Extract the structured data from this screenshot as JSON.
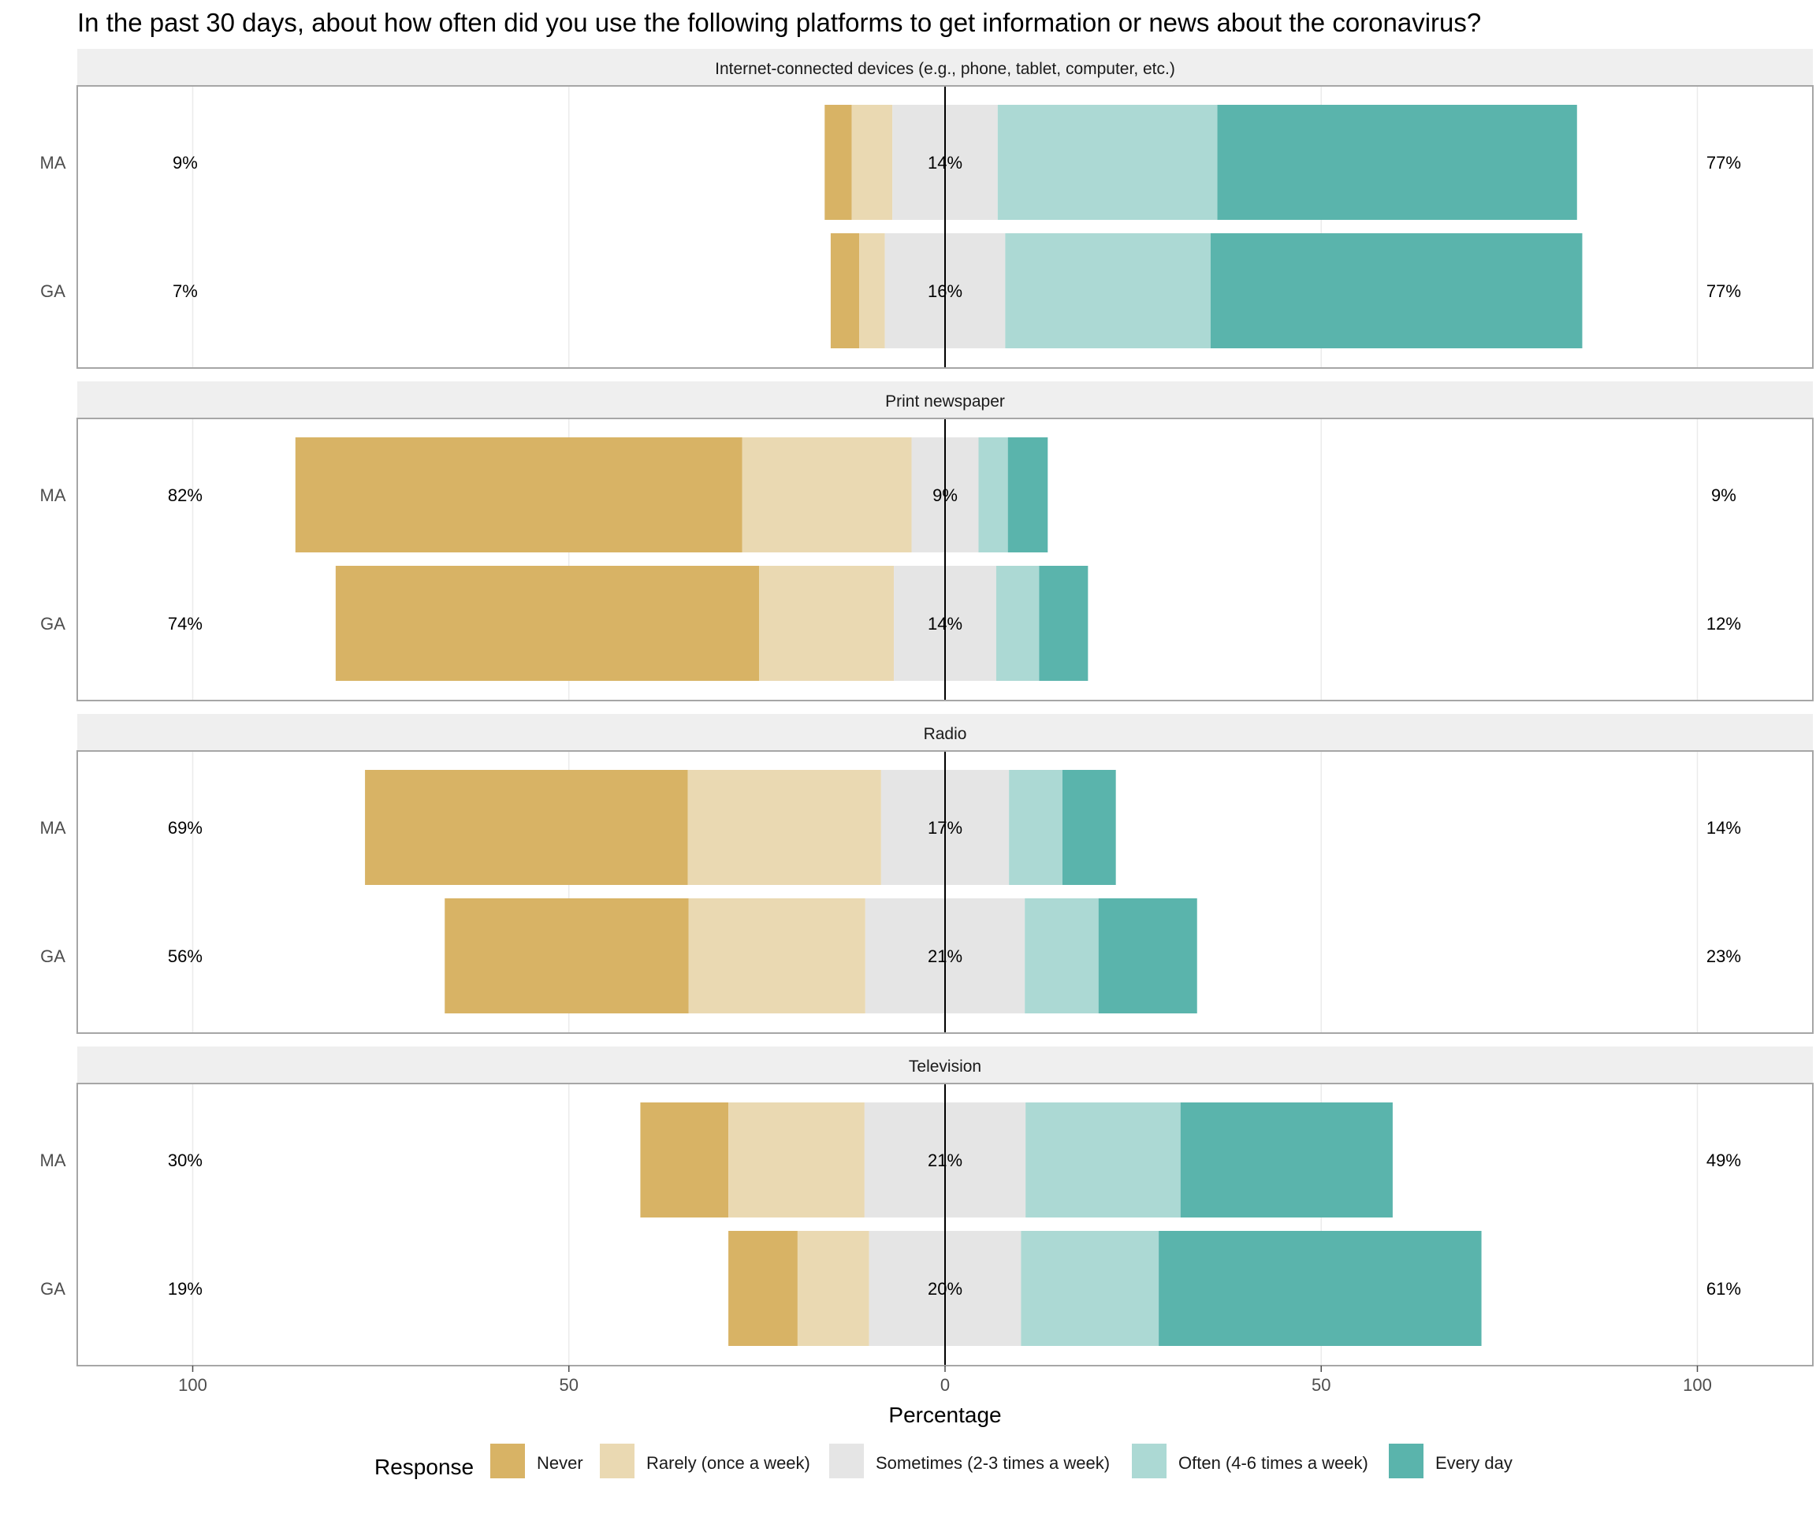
{
  "chart_data": {
    "type": "bar",
    "subtype": "diverging-stacked-likert",
    "title": "In the past 30 days, about how often did you use the following platforms to get information or news about the coronavirus?",
    "xlabel": "Percentage",
    "ylabel": "",
    "xlim": [
      -115,
      115
    ],
    "x_ticks": [
      -100,
      -50,
      0,
      50,
      100
    ],
    "x_tick_labels": [
      "100",
      "50",
      "0",
      "50",
      "100"
    ],
    "legend": {
      "title": "Response",
      "position": "bottom",
      "labels": [
        "Never",
        "Rarely (once a week)",
        "Sometimes (2-3 times a week)",
        "Often (4-6 times a week)",
        "Every day"
      ]
    },
    "colors": [
      "#d8b365",
      "#ead9b2",
      "#e5e5e5",
      "#acd9d4",
      "#5ab4ac"
    ],
    "panels": [
      {
        "title": "Internet-connected devices (e.g., phone, tablet, computer, etc.)",
        "rows": [
          {
            "label": "MA",
            "values": [
              3.6,
              5.4,
              14,
              29.2,
              47.8
            ],
            "low_label": "9%",
            "mid_label": "14%",
            "high_label": "77%"
          },
          {
            "label": "GA",
            "values": [
              3.8,
              3.4,
              16,
              27.3,
              49.4
            ],
            "low_label": "7%",
            "mid_label": "16%",
            "high_label": "77%"
          }
        ]
      },
      {
        "title": "Print newspaper",
        "rows": [
          {
            "label": "MA",
            "values": [
              59.4,
              22.5,
              8.9,
              3.9,
              5.3
            ],
            "low_label": "82%",
            "mid_label": "9%",
            "high_label": "9%"
          },
          {
            "label": "GA",
            "values": [
              56.3,
              17.9,
              13.6,
              5.7,
              6.5
            ],
            "low_label": "74%",
            "mid_label": "14%",
            "high_label": "12%"
          }
        ]
      },
      {
        "title": "Radio",
        "rows": [
          {
            "label": "MA",
            "values": [
              42.9,
              25.7,
              17,
              7.1,
              7.1
            ],
            "low_label": "69%",
            "mid_label": "17%",
            "high_label": "14%"
          },
          {
            "label": "GA",
            "values": [
              32.4,
              23.5,
              21.2,
              9.8,
              13.1
            ],
            "low_label": "56%",
            "mid_label": "21%",
            "high_label": "23%"
          }
        ]
      },
      {
        "title": "Television",
        "rows": [
          {
            "label": "MA",
            "values": [
              11.7,
              18.1,
              21.4,
              20.6,
              28.2
            ],
            "low_label": "30%",
            "mid_label": "21%",
            "high_label": "49%"
          },
          {
            "label": "GA",
            "values": [
              9.2,
              9.5,
              20.2,
              18.3,
              42.9
            ],
            "low_label": "19%",
            "mid_label": "20%",
            "high_label": "61%"
          }
        ]
      }
    ]
  }
}
